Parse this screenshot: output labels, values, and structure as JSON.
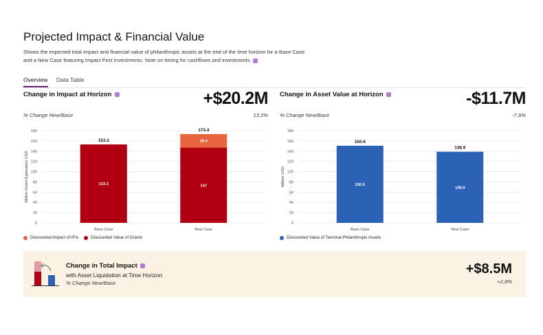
{
  "page": {
    "title": "Projected Impact & Financial Value",
    "description": "Shows the expected total impact and financial value of philanthropic assets at the end of the time horizon for a Base Case and a New Case featuring Impact First Investments. Note on timing for cashflows and investments."
  },
  "tabs": [
    {
      "label": "Overview",
      "active": true
    },
    {
      "label": "Data Table",
      "active": false
    }
  ],
  "impact_panel": {
    "title": "Change in Impact at Horizon",
    "value": "+$20.2M",
    "subtitle": "% Change New/Base",
    "pct": "13.2%",
    "ylabel": "Million Grant-Equivalent USD",
    "legend": [
      {
        "label": "Discounted Impact of IFIs",
        "color": "#e8643f"
      },
      {
        "label": "Discounted Value of Grants",
        "color": "#b00012"
      }
    ]
  },
  "asset_panel": {
    "title": "Change in Asset Value at Horizon",
    "value": "-$11.7M",
    "subtitle": "% Change New/Base",
    "pct": "-7.8%",
    "ylabel": "Million USD",
    "legend": [
      {
        "label": "Discounted Value of Terminal Philanthropic Assets",
        "color": "#2b62b5"
      }
    ]
  },
  "bottom_card": {
    "title": "Change in Total Impact",
    "subtitle": "with Asset Liquidation at Time Horizon",
    "pct_label": "% Change New/Base",
    "value": "+$8.5M",
    "pct": "+2.8%"
  },
  "chart_data": [
    {
      "type": "bar",
      "stacked": true,
      "categories": [
        "Base Case",
        "New Case"
      ],
      "ylabel": "Million Grant-Equivalent USD",
      "ylim": [
        0,
        180
      ],
      "yticks": [
        0,
        20,
        40,
        60,
        80,
        100,
        120,
        140,
        160,
        180
      ],
      "grid": true,
      "legend_position": "bottom-left",
      "series": [
        {
          "name": "Discounted Value of Grants",
          "values": [
            153.2,
            147
          ],
          "labels": [
            "153.2",
            "147"
          ],
          "color": "#b00012"
        },
        {
          "name": "Discounted Impact of IFIs",
          "values": [
            0,
            26.4
          ],
          "labels": [
            "",
            "26.4"
          ],
          "color": "#e8643f"
        }
      ],
      "totals": [
        "153.2",
        "173.4"
      ]
    },
    {
      "type": "bar",
      "stacked": false,
      "categories": [
        "Base Case",
        "New Case"
      ],
      "ylabel": "Million USD",
      "ylim": [
        0,
        180
      ],
      "yticks": [
        0,
        20,
        40,
        60,
        80,
        100,
        120,
        140,
        160,
        180
      ],
      "grid": true,
      "legend_position": "bottom-left",
      "series": [
        {
          "name": "Discounted Value of Terminal Philanthropic Assets",
          "values": [
            150.6,
            138.9
          ],
          "labels": [
            "150.6",
            "138.9"
          ],
          "color": "#2b62b5"
        }
      ],
      "totals": [
        "150.6",
        "138.9"
      ]
    }
  ]
}
